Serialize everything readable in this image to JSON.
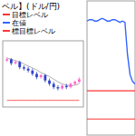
{
  "chart_data": [
    {
      "type": "candlestick",
      "x": [
        0,
        1,
        2,
        3,
        4,
        5,
        6,
        7,
        8,
        9,
        10,
        11,
        12,
        13,
        14,
        15,
        16,
        17
      ],
      "open": [
        70,
        72,
        66,
        68,
        60,
        58,
        55,
        50,
        45,
        48,
        40,
        35,
        30,
        28,
        32,
        30,
        35,
        38
      ],
      "high": [
        75,
        74,
        70,
        70,
        63,
        61,
        58,
        53,
        50,
        50,
        43,
        38,
        33,
        34,
        35,
        37,
        40,
        45
      ],
      "low": [
        68,
        63,
        64,
        57,
        55,
        52,
        47,
        42,
        43,
        37,
        32,
        27,
        25,
        26,
        27,
        28,
        33,
        36
      ],
      "close": [
        72,
        66,
        68,
        60,
        58,
        55,
        50,
        45,
        48,
        40,
        35,
        30,
        28,
        32,
        30,
        35,
        38,
        42
      ],
      "colors": [
        "#ff66cc",
        "#3344cc"
      ],
      "series": [
        {
          "color": "#999999",
          "values": [
            74,
            72,
            70,
            68,
            65,
            62,
            59,
            56,
            52,
            49,
            46,
            42,
            38,
            35,
            33,
            32,
            33,
            35
          ]
        },
        {
          "color": "#ff3333",
          "values": [
            10,
            10,
            10,
            10,
            10,
            10,
            10,
            10,
            10,
            10,
            10,
            10,
            10,
            10,
            10,
            10,
            10,
            10
          ]
        }
      ],
      "xlim": [
        -1,
        18
      ],
      "ylim": [
        0,
        100
      ],
      "tick_labels": false
    },
    {
      "type": "line",
      "title": "ベル】(ドル/円)",
      "x": [
        0,
        1,
        2,
        3,
        4,
        5,
        6,
        7,
        8,
        9,
        10,
        11,
        12,
        13,
        14,
        15,
        16,
        17,
        18,
        19
      ],
      "series": [
        {
          "name": "目標レベル",
          "color": "#ff3333",
          "values": [
            33,
            33,
            33,
            33,
            33,
            33,
            33,
            33,
            33,
            33,
            33,
            33,
            33,
            33,
            33,
            33,
            33,
            33,
            33,
            33
          ]
        },
        {
          "name": "在値",
          "color": "#3366ff",
          "values": [
            85,
            86,
            86,
            85,
            85,
            86,
            87,
            86,
            85,
            85,
            86,
            86,
            85,
            84,
            85,
            84,
            60,
            45,
            40,
            38
          ]
        },
        {
          "name": "標目標レベル",
          "color": "#ff3333",
          "values": [
            12,
            12,
            12,
            12,
            12,
            12,
            12,
            12,
            12,
            12,
            12,
            12,
            12,
            12,
            12,
            12,
            12,
            12,
            12,
            12
          ]
        }
      ],
      "xlim": [
        0,
        19
      ],
      "ylim": [
        0,
        100
      ],
      "tick_labels": false
    }
  ]
}
